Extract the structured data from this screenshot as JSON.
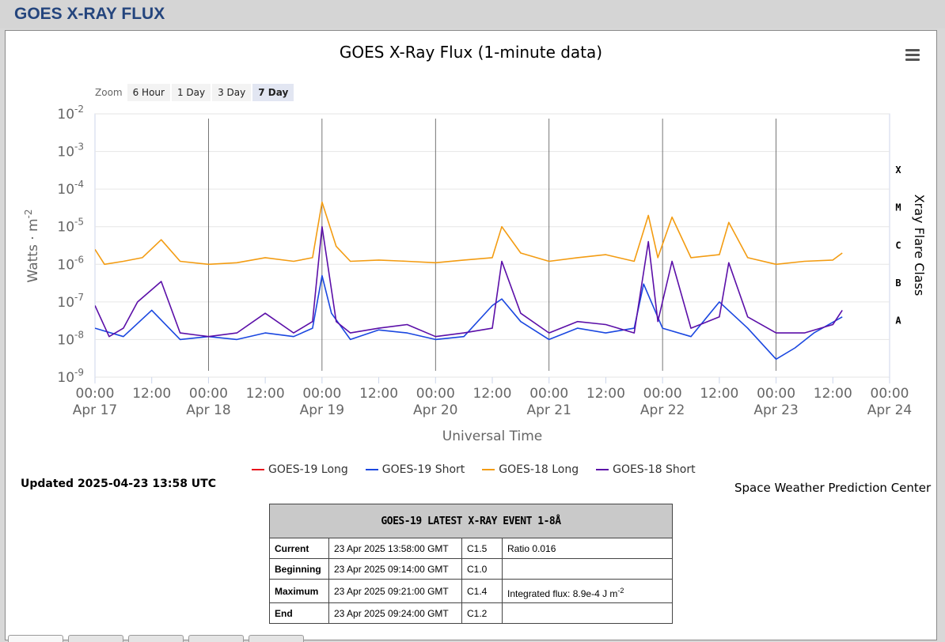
{
  "page_title": "GOES X-RAY FLUX",
  "zoom": {
    "label": "Zoom",
    "buttons": [
      "6 Hour",
      "1 Day",
      "3 Day",
      "7 Day"
    ],
    "active": "7 Day"
  },
  "updated": "Updated 2025-04-23 13:58 UTC",
  "credit": "Space Weather Prediction Center",
  "colors": {
    "goes19_long": "#e8141c",
    "goes19_short": "#1a47e0",
    "goes18_long": "#f39c12",
    "goes18_short": "#5b0fa8"
  },
  "chart_data": {
    "type": "line",
    "title": "GOES X-Ray Flux (1-minute data)",
    "xlabel": "Universal Time",
    "ylabel": "Watts · m",
    "ylabel_exp": "-2",
    "y2label": "Xray Flare Class",
    "yscale": "log",
    "ylim": [
      1e-09,
      0.01
    ],
    "y_ticks": [
      {
        "base": "10",
        "exp": "-2"
      },
      {
        "base": "10",
        "exp": "-3"
      },
      {
        "base": "10",
        "exp": "-4"
      },
      {
        "base": "10",
        "exp": "-5"
      },
      {
        "base": "10",
        "exp": "-6"
      },
      {
        "base": "10",
        "exp": "-7"
      },
      {
        "base": "10",
        "exp": "-8"
      },
      {
        "base": "10",
        "exp": "-9"
      }
    ],
    "flare_classes": [
      "X",
      "M",
      "C",
      "B",
      "A"
    ],
    "x_ticks": [
      {
        "time": "00:00",
        "date": "Apr 17"
      },
      {
        "time": "12:00",
        "date": ""
      },
      {
        "time": "00:00",
        "date": "Apr 18"
      },
      {
        "time": "12:00",
        "date": ""
      },
      {
        "time": "00:00",
        "date": "Apr 19"
      },
      {
        "time": "12:00",
        "date": ""
      },
      {
        "time": "00:00",
        "date": "Apr 20"
      },
      {
        "time": "12:00",
        "date": ""
      },
      {
        "time": "00:00",
        "date": "Apr 21"
      },
      {
        "time": "12:00",
        "date": ""
      },
      {
        "time": "00:00",
        "date": "Apr 22"
      },
      {
        "time": "12:00",
        "date": ""
      },
      {
        "time": "00:00",
        "date": "Apr 23"
      },
      {
        "time": "12:00",
        "date": ""
      },
      {
        "time": "00:00",
        "date": "Apr 24"
      }
    ],
    "xlim": [
      "2025-04-17 00:00",
      "2025-04-24 00:00"
    ],
    "series": [
      {
        "name": "GOES-19 Long",
        "x": [],
        "values": []
      },
      {
        "name": "GOES-19 Short",
        "x": [
          "2025-04-17 00:00",
          "2025-04-17 06:00",
          "2025-04-17 12:00",
          "2025-04-17 18:00",
          "2025-04-18 00:00",
          "2025-04-18 06:00",
          "2025-04-18 12:00",
          "2025-04-18 18:00",
          "2025-04-18 22:00",
          "2025-04-19 00:00",
          "2025-04-19 02:00",
          "2025-04-19 06:00",
          "2025-04-19 12:00",
          "2025-04-19 18:00",
          "2025-04-20 00:00",
          "2025-04-20 06:00",
          "2025-04-20 12:00",
          "2025-04-20 14:00",
          "2025-04-20 18:00",
          "2025-04-21 00:00",
          "2025-04-21 06:00",
          "2025-04-21 12:00",
          "2025-04-21 18:00",
          "2025-04-21 20:00",
          "2025-04-22 00:00",
          "2025-04-22 06:00",
          "2025-04-22 12:00",
          "2025-04-22 18:00",
          "2025-04-23 00:00",
          "2025-04-23 04:00",
          "2025-04-23 08:00",
          "2025-04-23 14:00"
        ],
        "values": [
          2e-08,
          1.2e-08,
          6e-08,
          1e-08,
          1.2e-08,
          1e-08,
          1.5e-08,
          1.2e-08,
          2e-08,
          5e-07,
          5e-08,
          1e-08,
          1.8e-08,
          1.5e-08,
          1e-08,
          1.2e-08,
          8e-08,
          1.2e-07,
          3e-08,
          1e-08,
          2e-08,
          1.5e-08,
          2e-08,
          3e-07,
          2e-08,
          1.2e-08,
          1e-07,
          2e-08,
          3e-09,
          6e-09,
          1.5e-08,
          4e-08
        ]
      },
      {
        "name": "GOES-18 Long",
        "x": [
          "2025-04-17 00:00",
          "2025-04-17 02:00",
          "2025-04-17 06:00",
          "2025-04-17 10:00",
          "2025-04-17 14:00",
          "2025-04-17 18:00",
          "2025-04-18 00:00",
          "2025-04-18 06:00",
          "2025-04-18 12:00",
          "2025-04-18 18:00",
          "2025-04-18 22:00",
          "2025-04-19 00:00",
          "2025-04-19 03:00",
          "2025-04-19 06:00",
          "2025-04-19 12:00",
          "2025-04-19 18:00",
          "2025-04-20 00:00",
          "2025-04-20 06:00",
          "2025-04-20 12:00",
          "2025-04-20 14:00",
          "2025-04-20 18:00",
          "2025-04-21 00:00",
          "2025-04-21 06:00",
          "2025-04-21 12:00",
          "2025-04-21 18:00",
          "2025-04-21 21:00",
          "2025-04-21 23:00",
          "2025-04-22 02:00",
          "2025-04-22 06:00",
          "2025-04-22 12:00",
          "2025-04-22 14:00",
          "2025-04-22 18:00",
          "2025-04-23 00:00",
          "2025-04-23 06:00",
          "2025-04-23 12:00",
          "2025-04-23 14:00"
        ],
        "values": [
          2.5e-06,
          1e-06,
          1.2e-06,
          1.5e-06,
          4.5e-06,
          1.2e-06,
          1e-06,
          1.1e-06,
          1.5e-06,
          1.2e-06,
          1.5e-06,
          4.5e-05,
          3e-06,
          1.2e-06,
          1.3e-06,
          1.2e-06,
          1.1e-06,
          1.3e-06,
          1.5e-06,
          1e-05,
          2e-06,
          1.2e-06,
          1.5e-06,
          1.8e-06,
          1.2e-06,
          2e-05,
          1.5e-06,
          1.8e-05,
          1.5e-06,
          1.8e-06,
          1.3e-05,
          1.5e-06,
          1e-06,
          1.2e-06,
          1.3e-06,
          2e-06
        ]
      },
      {
        "name": "GOES-18 Short",
        "x": [
          "2025-04-17 00:00",
          "2025-04-17 03:00",
          "2025-04-17 06:00",
          "2025-04-17 09:00",
          "2025-04-17 14:00",
          "2025-04-17 18:00",
          "2025-04-18 00:00",
          "2025-04-18 06:00",
          "2025-04-18 12:00",
          "2025-04-18 18:00",
          "2025-04-18 22:00",
          "2025-04-19 00:00",
          "2025-04-19 03:00",
          "2025-04-19 06:00",
          "2025-04-19 12:00",
          "2025-04-19 18:00",
          "2025-04-20 00:00",
          "2025-04-20 06:00",
          "2025-04-20 12:00",
          "2025-04-20 14:00",
          "2025-04-20 18:00",
          "2025-04-21 00:00",
          "2025-04-21 06:00",
          "2025-04-21 12:00",
          "2025-04-21 18:00",
          "2025-04-21 21:00",
          "2025-04-21 23:00",
          "2025-04-22 02:00",
          "2025-04-22 06:00",
          "2025-04-22 12:00",
          "2025-04-22 14:00",
          "2025-04-22 18:00",
          "2025-04-23 00:00",
          "2025-04-23 06:00",
          "2025-04-23 12:00",
          "2025-04-23 14:00"
        ],
        "values": [
          8e-08,
          1.2e-08,
          2e-08,
          1e-07,
          3.5e-07,
          1.5e-08,
          1.2e-08,
          1.5e-08,
          5e-08,
          1.5e-08,
          3e-08,
          1e-05,
          3e-08,
          1.5e-08,
          2e-08,
          2.5e-08,
          1.2e-08,
          1.5e-08,
          2e-08,
          1.2e-06,
          5e-08,
          1.5e-08,
          3e-08,
          2.5e-08,
          1.5e-08,
          4e-06,
          3e-08,
          1.2e-06,
          2e-08,
          4e-08,
          1.1e-06,
          4e-08,
          1.5e-08,
          1.5e-08,
          2.5e-08,
          6e-08
        ]
      }
    ]
  },
  "event_table": {
    "title": "GOES-19 LATEST X-RAY EVENT 1-8Å",
    "rows": [
      {
        "label": "Current",
        "time": "23 Apr 2025 13:58:00 GMT",
        "class": "C1.5",
        "extra": "Ratio 0.016",
        "extra_sup": ""
      },
      {
        "label": "Beginning",
        "time": "23 Apr 2025 09:14:00 GMT",
        "class": "C1.0",
        "extra": "",
        "extra_sup": ""
      },
      {
        "label": "Maximum",
        "time": "23 Apr 2025 09:21:00 GMT",
        "class": "C1.4",
        "extra": "Integrated flux: 8.9e-4 J m",
        "extra_sup": "-2"
      },
      {
        "label": "End",
        "time": "23 Apr 2025 09:24:00 GMT",
        "class": "C1.2",
        "extra": "",
        "extra_sup": ""
      }
    ]
  }
}
